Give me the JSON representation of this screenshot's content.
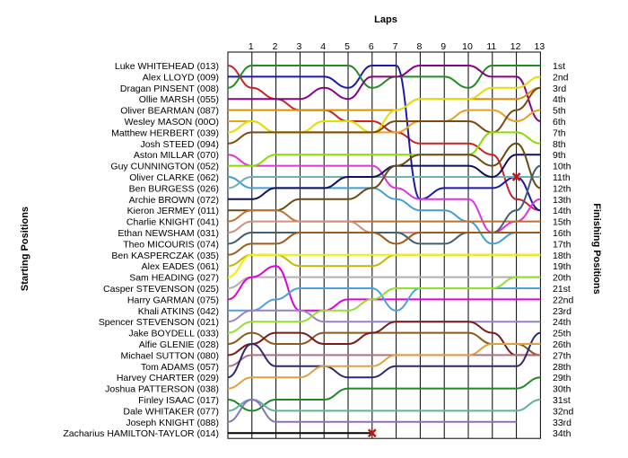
{
  "chart_data": {
    "type": "line",
    "title": "Laps",
    "ylabel_left": "Starting Positions",
    "ylabel_right": "Finishing Positions",
    "laps": [
      1,
      2,
      3,
      4,
      5,
      6,
      7,
      8,
      9,
      10,
      11,
      12,
      13
    ],
    "finishing_labels": [
      "1st",
      "2nd",
      "3rd",
      "4th",
      "5th",
      "6th",
      "7th",
      "8th",
      "9th",
      "10th",
      "11th",
      "12th",
      "13th",
      "14th",
      "15th",
      "16th",
      "17th",
      "18th",
      "19th",
      "20th",
      "21st",
      "22nd",
      "23rd",
      "24th",
      "25th",
      "26th",
      "27th",
      "28th",
      "29th",
      "30th",
      "31st",
      "32nd",
      "33rd",
      "34th"
    ],
    "grid": true,
    "series": [
      {
        "name": "Luke WHITEHEAD (013)",
        "color": "#cc2222",
        "positions": [
          1,
          3,
          4,
          5,
          5,
          6,
          6,
          7,
          8,
          8,
          8,
          9,
          13,
          14
        ]
      },
      {
        "name": "Alex LLOYD (009)",
        "color": "#1a1aa8",
        "positions": [
          2,
          2,
          2,
          2,
          2,
          3,
          1,
          1,
          13,
          12,
          12,
          12,
          11,
          14
        ]
      },
      {
        "name": "Dragan PINSENT (008)",
        "color": "#228b22",
        "positions": [
          3,
          1,
          1,
          1,
          1,
          1,
          3,
          2,
          2,
          2,
          3,
          1,
          1,
          1
        ]
      },
      {
        "name": "Ollie MARSH (055)",
        "color": "#8b008b",
        "positions": [
          4,
          4,
          4,
          4,
          3,
          4,
          2,
          2,
          1,
          1,
          1,
          2,
          2,
          6
        ]
      },
      {
        "name": "Oliver BEARMAN (087)",
        "color": "#e08e00",
        "positions": [
          5,
          5,
          5,
          5,
          5,
          5,
          5,
          5,
          4,
          4,
          4,
          4,
          4,
          3
        ]
      },
      {
        "name": "Wesley MASON (00O)",
        "color": "#e8a020",
        "positions": [
          6,
          6,
          7,
          7,
          7,
          7,
          7,
          7,
          6,
          6,
          5,
          5,
          6,
          5
        ]
      },
      {
        "name": "Matthew HERBERT (039)",
        "color": "#e0e000",
        "positions": [
          7,
          6,
          7,
          7,
          6,
          6,
          7,
          5,
          4,
          4,
          4,
          3,
          3,
          2
        ]
      },
      {
        "name": "Josh STEED (094)",
        "color": "#7b4a12",
        "positions": [
          8,
          7,
          7,
          7,
          7,
          7,
          7,
          6,
          6,
          6,
          6,
          7,
          5,
          3
        ]
      },
      {
        "name": "Aston MILLAR (070)",
        "color": "#e030e0",
        "positions": [
          9,
          10,
          10,
          10,
          10,
          10,
          10,
          12,
          13,
          13,
          13,
          16,
          15,
          13
        ]
      },
      {
        "name": "Guy CUNNINGTON (052)",
        "color": "#88dd00",
        "positions": [
          10,
          10,
          9,
          9,
          9,
          9,
          9,
          9,
          9,
          9,
          9,
          7,
          7,
          8
        ]
      },
      {
        "name": "Oliver CLARKE (062)",
        "color": "#40a0d0",
        "positions": [
          11,
          12,
          12,
          12,
          12,
          12,
          12,
          13,
          14,
          14,
          15,
          17,
          16,
          16
        ]
      },
      {
        "name": "Ben BURGESS (026)",
        "color": "#70b0b0",
        "positions": [
          12,
          11,
          11,
          11,
          11,
          11,
          11,
          11,
          11,
          11,
          11,
          11,
          11,
          11
        ]
      },
      {
        "name": "Archie BROWN (072)",
        "color": "#101060",
        "positions": [
          13,
          13,
          12,
          12,
          12,
          11,
          11,
          10,
          10,
          10,
          10,
          11,
          9,
          9
        ]
      },
      {
        "name": "Kieron JERMEY (011)",
        "color": "#6a4a10",
        "positions": [
          14,
          14,
          14,
          13,
          13,
          13,
          12,
          10,
          9,
          9,
          9,
          10,
          8,
          12
        ]
      },
      {
        "name": "Charlie KNIGHT (041)",
        "color": "#c07030",
        "positions": [
          15,
          14,
          14,
          15,
          15,
          15,
          15,
          15,
          15,
          15,
          15,
          15,
          15,
          15
        ]
      },
      {
        "name": "Ethan NEWSHAM (031)",
        "color": "#d09080",
        "positions": [
          16,
          15,
          15,
          15,
          15,
          15,
          16,
          16,
          16,
          16,
          16,
          16,
          16,
          16
        ]
      },
      {
        "name": "Theo MICOURIS (074)",
        "color": "#406070",
        "positions": [
          17,
          16,
          16,
          16,
          16,
          16,
          16,
          16,
          17,
          17,
          16,
          16,
          14,
          10
        ]
      },
      {
        "name": "Ben KASPERCZAK (035)",
        "color": "#a05a1a",
        "positions": [
          18,
          17,
          17,
          16,
          16,
          16,
          16,
          17,
          16,
          16,
          16,
          16,
          16,
          16
        ]
      },
      {
        "name": "Alex EADES (061)",
        "color": "#c8b400",
        "positions": [
          19,
          18,
          18,
          19,
          19,
          19,
          19,
          18,
          18,
          18,
          18,
          18,
          18,
          18
        ]
      },
      {
        "name": "Sam HEADING (027)",
        "color": "#f0f000",
        "positions": [
          20,
          18,
          18,
          18,
          18,
          18,
          18,
          18,
          18,
          18,
          18,
          18,
          18,
          18
        ]
      },
      {
        "name": "Casper STEVENSON (025)",
        "color": "#b0b0b0",
        "positions": [
          21,
          20,
          20,
          20,
          20,
          20,
          20,
          20,
          20,
          20,
          20,
          20,
          20,
          20
        ]
      },
      {
        "name": "Harry GARMAN (075)",
        "color": "#dd00dd",
        "positions": [
          22,
          20,
          19,
          23,
          23,
          22,
          22,
          22,
          22,
          22,
          22,
          22,
          22,
          22
        ]
      },
      {
        "name": "Khali ATKINS (042)",
        "color": "#4aa0e0",
        "positions": [
          23,
          23,
          22,
          21,
          21,
          21,
          21,
          23,
          21,
          21,
          21,
          21,
          21,
          21
        ]
      },
      {
        "name": "Spencer STEVENSON (021)",
        "color": "#9a80c0",
        "positions": [
          24,
          23,
          23,
          23,
          24,
          24,
          24,
          24,
          24,
          24,
          24,
          24,
          24,
          24
        ]
      },
      {
        "name": "Jake BOYDELL (033)",
        "color": "#90e030",
        "positions": [
          25,
          24,
          24,
          24,
          23,
          23,
          22,
          21,
          21,
          21,
          21,
          21,
          20,
          20
        ]
      },
      {
        "name": "Alfie GLENIE (028)",
        "color": "#8a5a20",
        "positions": [
          26,
          25,
          26,
          26,
          25,
          25,
          25,
          25,
          25,
          25,
          25,
          26,
          26,
          27
        ]
      },
      {
        "name": "Michael SUTTON (080)",
        "color": "#7a1a1a",
        "positions": [
          27,
          26,
          25,
          25,
          26,
          26,
          25,
          24,
          24,
          24,
          24,
          25,
          27,
          27
        ]
      },
      {
        "name": "Tom ADAMS (057)",
        "color": "#b07080",
        "positions": [
          28,
          27,
          27,
          27,
          27,
          27,
          27,
          27,
          27,
          27,
          27,
          27,
          27,
          27
        ]
      },
      {
        "name": "Harvey CHARTER (029)",
        "color": "#2a2a70",
        "positions": [
          29,
          26,
          28,
          28,
          28,
          29,
          29,
          28,
          28,
          28,
          28,
          28,
          28,
          25
        ]
      },
      {
        "name": "Joshua PATTERSON (038)",
        "color": "#e0a040",
        "positions": [
          30,
          29,
          29,
          29,
          28,
          28,
          28,
          27,
          27,
          27,
          27,
          26,
          26,
          26
        ]
      },
      {
        "name": "Finley ISAAC (017)",
        "color": "#228822",
        "positions": [
          31,
          32,
          31,
          31,
          31,
          30,
          30,
          30,
          30,
          30,
          30,
          30,
          30,
          29
        ]
      },
      {
        "name": "Dale WHITAKER (077)",
        "color": "#60b0a0",
        "positions": [
          32,
          31,
          32,
          32,
          32,
          32,
          32,
          32,
          32,
          32,
          32,
          32,
          32,
          31
        ]
      },
      {
        "name": "Joseph KNIGHT (088)",
        "color": "#8a70c0",
        "positions": [
          33,
          31,
          33,
          33,
          33,
          33,
          33,
          33,
          33,
          33,
          33,
          33,
          33,
          null
        ]
      },
      {
        "name": "Zacharius HAMILTON-TAYLOR (014)",
        "color": "#000000",
        "positions": [
          34,
          34,
          34,
          34,
          34,
          34,
          34,
          null,
          null,
          null,
          null,
          null,
          null,
          null
        ]
      }
    ],
    "retirements": [
      {
        "driver": "Zacharius HAMILTON-TAYLOR (014)",
        "lap": 6,
        "position": 34
      },
      {
        "driver": "Oliver CLARKE (062)",
        "lap": 12,
        "position": 11
      }
    ]
  }
}
